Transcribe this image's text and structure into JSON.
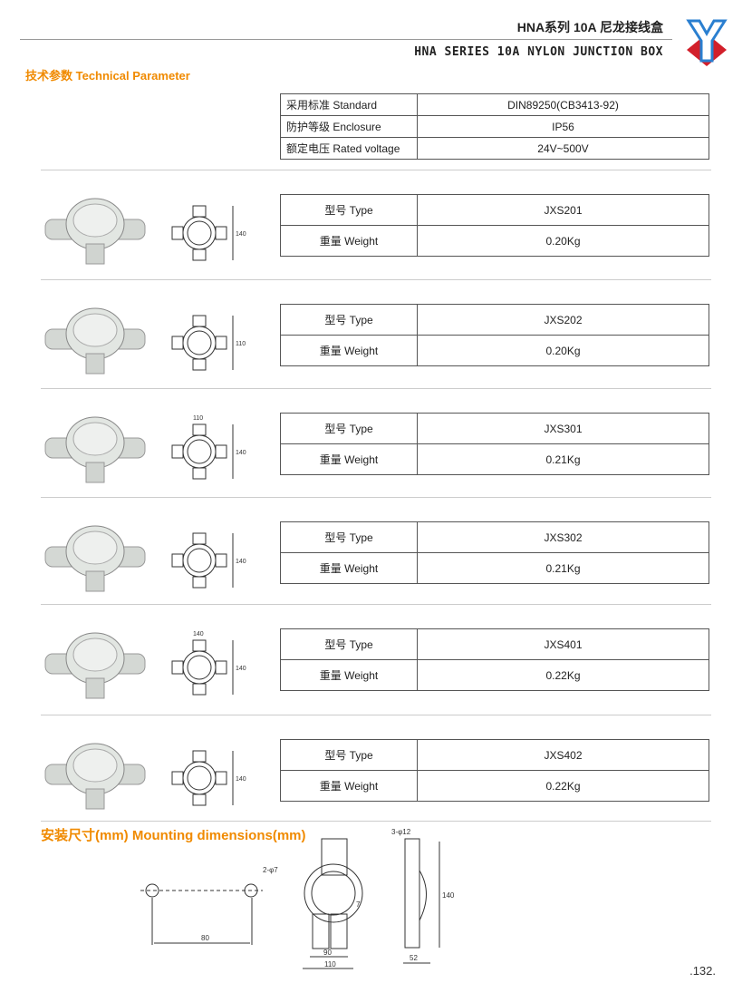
{
  "header": {
    "title_cn": "HNA系列 10A 尼龙接线盒",
    "title_en": "HNA SERIES 10A NYLON JUNCTION BOX"
  },
  "technical_heading": "技术参数 Technical Parameter",
  "spec": [
    {
      "label": "采用标准  Standard",
      "value": "DIN89250(CB3413-92)"
    },
    {
      "label": "防护等级  Enclosure",
      "value": "IP56"
    },
    {
      "label": "额定电压  Rated voltage",
      "value": "24V~500V"
    }
  ],
  "type_label": "型号   Type",
  "weight_label": "重量   Weight",
  "products": [
    {
      "type": "JXS201",
      "weight": "0.20Kg",
      "dims": [
        "140"
      ]
    },
    {
      "type": "JXS202",
      "weight": "0.20Kg",
      "dims": [
        "110"
      ]
    },
    {
      "type": "JXS301",
      "weight": "0.21Kg",
      "dims": [
        "140",
        "110"
      ]
    },
    {
      "type": "JXS302",
      "weight": "0.21Kg",
      "dims": [
        "140"
      ]
    },
    {
      "type": "JXS401",
      "weight": "0.22Kg",
      "dims": [
        "140",
        "140"
      ]
    },
    {
      "type": "JXS402",
      "weight": "0.22Kg",
      "dims": [
        "140"
      ]
    }
  ],
  "mounting_heading": "安装尺寸(mm)   Mounting dimensions(mm)",
  "mounting": {
    "hole_label": "2-φ7",
    "spacing": "80",
    "inner_width": "90",
    "outer_width": "110",
    "offset": "7",
    "top_label": "3-φ12",
    "height": "140",
    "depth": "52"
  },
  "page_number": ".132."
}
